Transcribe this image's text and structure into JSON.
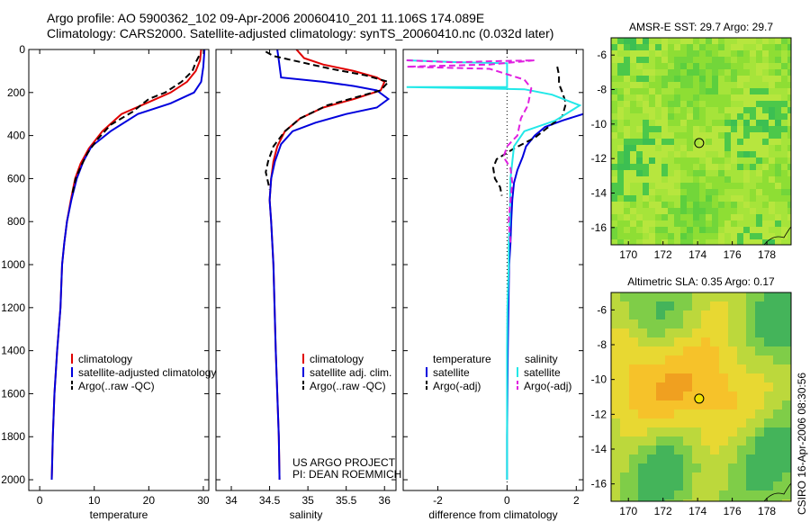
{
  "header": {
    "title_line1": "Argo profile: AO 5900362_102 09-Apr-2006 20060410_201 11.106S 174.089E",
    "title_line2": "Climatology: CARS2000. Satellite-adjusted climatology: synTS_20060410.nc (0.032d later)"
  },
  "credit": {
    "text": "CSIRO 16-Apr-2006 08:30:56"
  },
  "colors": {
    "red": "#e00000",
    "blue": "#0000dd",
    "black": "#000000",
    "cyan": "#22e8e8",
    "magenta": "#e020e0"
  },
  "chart_data": [
    {
      "type": "line",
      "id": "temperature",
      "xlabel": "temperature",
      "xlim": [
        -2,
        31
      ],
      "ylim": [
        2050,
        0
      ],
      "xticks": [
        0,
        10,
        20,
        30
      ],
      "xtick_labels": [
        "0",
        "10",
        "20",
        "30"
      ],
      "yticks": [
        0,
        200,
        400,
        600,
        800,
        1000,
        1200,
        1400,
        1600,
        1800,
        2000
      ],
      "ytick_labels": [
        "0",
        "200",
        "400",
        "600",
        "800",
        "1000",
        "1200",
        "1400",
        "1600",
        "1800",
        "2000"
      ],
      "legend": [
        "climatology",
        "satellite-adjusted climatology",
        "Argo(..raw -QC)"
      ],
      "series": [
        {
          "name": "climatology",
          "color": "red",
          "dash": "",
          "points": [
            [
              29.6,
              0
            ],
            [
              29.4,
              50
            ],
            [
              28.6,
              100
            ],
            [
              27,
              150
            ],
            [
              24,
              200
            ],
            [
              19.5,
              250
            ],
            [
              15,
              300
            ],
            [
              11.5,
              380
            ],
            [
              9,
              460
            ],
            [
              7.5,
              530
            ],
            [
              6.5,
              600
            ],
            [
              5.7,
              700
            ],
            [
              5,
              800
            ],
            [
              4.5,
              900
            ],
            [
              4.1,
              1000
            ],
            [
              3.8,
              1200
            ],
            [
              3.2,
              1400
            ],
            [
              2.7,
              1600
            ],
            [
              2.4,
              1800
            ],
            [
              2.2,
              2000
            ]
          ]
        },
        {
          "name": "satellite-adjusted climatology",
          "color": "blue",
          "dash": "",
          "points": [
            [
              30.2,
              0
            ],
            [
              30,
              80
            ],
            [
              29.6,
              150
            ],
            [
              28.3,
              200
            ],
            [
              24,
              250
            ],
            [
              18,
              300
            ],
            [
              13,
              380
            ],
            [
              9.5,
              450
            ],
            [
              8,
              520
            ],
            [
              6.8,
              600
            ],
            [
              5.8,
              700
            ],
            [
              5,
              800
            ],
            [
              4.5,
              900
            ],
            [
              4.1,
              1000
            ],
            [
              3.8,
              1200
            ],
            [
              3.2,
              1400
            ],
            [
              2.7,
              1600
            ],
            [
              2.4,
              1800
            ],
            [
              2.2,
              2000
            ]
          ]
        },
        {
          "name": "Argo(..raw -QC)",
          "color": "black",
          "dash": "7,4",
          "points": [
            [
              29.2,
              30
            ],
            [
              28.6,
              60
            ],
            [
              28,
              100
            ],
            [
              26,
              150
            ],
            [
              23,
              200
            ],
            [
              20,
              230
            ],
            [
              17,
              290
            ],
            [
              13,
              350
            ],
            [
              10.5,
              420
            ],
            [
              8.8,
              480
            ],
            [
              7.6,
              540
            ],
            [
              6.6,
              600
            ],
            [
              5.9,
              680
            ]
          ]
        }
      ]
    },
    {
      "type": "line",
      "id": "salinity",
      "xlabel": "salinity",
      "xlim": [
        33.8,
        36.15
      ],
      "ylim": [
        2050,
        0
      ],
      "xticks": [
        34,
        34.5,
        35,
        35.5,
        36
      ],
      "xtick_labels": [
        "34",
        "34.5",
        "35",
        "35.5",
        "36"
      ],
      "legend": [
        "climatology",
        "satellite adj. clim.",
        "Argo(..raw -QC)"
      ],
      "annotation": [
        "US ARGO PROJECT",
        "PI: DEAN ROEMMICH"
      ],
      "series": [
        {
          "name": "climatology",
          "color": "red",
          "dash": "",
          "points": [
            [
              34.85,
              0
            ],
            [
              34.95,
              40
            ],
            [
              35.2,
              70
            ],
            [
              35.6,
              100
            ],
            [
              35.9,
              130
            ],
            [
              36,
              150
            ],
            [
              35.95,
              190
            ],
            [
              35.6,
              230
            ],
            [
              35.2,
              270
            ],
            [
              34.9,
              320
            ],
            [
              34.7,
              380
            ],
            [
              34.6,
              450
            ],
            [
              34.55,
              520
            ],
            [
              34.52,
              600
            ],
            [
              34.5,
              700
            ],
            [
              34.52,
              800
            ],
            [
              34.55,
              1000
            ],
            [
              34.58,
              1400
            ],
            [
              34.62,
              1800
            ],
            [
              34.63,
              2000
            ]
          ]
        },
        {
          "name": "satellite adj. clim.",
          "color": "blue",
          "dash": "",
          "points": [
            [
              34.6,
              0
            ],
            [
              34.62,
              50
            ],
            [
              34.65,
              130
            ],
            [
              35.2,
              150
            ],
            [
              35.6,
              170
            ],
            [
              35.9,
              190
            ],
            [
              36.05,
              230
            ],
            [
              35.9,
              270
            ],
            [
              35.5,
              300
            ],
            [
              35.1,
              340
            ],
            [
              34.8,
              380
            ],
            [
              34.65,
              440
            ],
            [
              34.57,
              520
            ],
            [
              34.52,
              600
            ],
            [
              34.5,
              700
            ],
            [
              34.52,
              800
            ],
            [
              34.55,
              1000
            ],
            [
              34.58,
              1400
            ],
            [
              34.62,
              1800
            ],
            [
              34.63,
              2000
            ]
          ]
        },
        {
          "name": "Argo(..raw -QC)",
          "color": "black",
          "dash": "7,4",
          "points": [
            [
              34.45,
              10
            ],
            [
              34.55,
              30
            ],
            [
              34.8,
              50
            ],
            [
              35.3,
              90
            ],
            [
              35.75,
              120
            ],
            [
              36.05,
              150
            ],
            [
              35.95,
              190
            ],
            [
              35.65,
              220
            ],
            [
              35.25,
              260
            ],
            [
              34.9,
              320
            ],
            [
              34.7,
              380
            ],
            [
              34.55,
              450
            ],
            [
              34.48,
              520
            ],
            [
              34.45,
              570
            ],
            [
              34.5,
              650
            ]
          ]
        }
      ]
    },
    {
      "type": "line",
      "id": "difference",
      "xlabel": "difference from climatology",
      "xlim": [
        -3,
        2.2
      ],
      "ylim": [
        2050,
        0
      ],
      "xticks": [
        -2,
        0,
        2
      ],
      "xtick_labels": [
        "-2",
        "0",
        "2"
      ],
      "legend_header": [
        "temperature",
        "salinity"
      ],
      "legend": [
        "satellite",
        "Argo(-adj)",
        "satellite",
        "Argo(-adj)"
      ],
      "series": [
        {
          "name": "temperature satellite",
          "color": "blue",
          "dash": "",
          "points": [
            [
              2.2,
              300
            ],
            [
              1.6,
              330
            ],
            [
              1.1,
              360
            ],
            [
              0.8,
              400
            ],
            [
              0.55,
              450
            ],
            [
              0.45,
              500
            ],
            [
              0.3,
              560
            ],
            [
              0.2,
              620
            ],
            [
              0.15,
              700
            ],
            [
              0.12,
              800
            ],
            [
              0.1,
              900
            ],
            [
              0.06,
              1000
            ],
            [
              0.04,
              1200
            ],
            [
              0.02,
              1400
            ],
            [
              0.01,
              1600
            ],
            [
              0,
              1800
            ],
            [
              0,
              2000
            ]
          ]
        },
        {
          "name": "temperature Argo(-adj)",
          "color": "black",
          "dash": "7,4",
          "points": [
            [
              1.45,
              80
            ],
            [
              1.5,
              120
            ],
            [
              1.5,
              160
            ],
            [
              1.6,
              200
            ],
            [
              1.7,
              250
            ],
            [
              1.6,
              310
            ],
            [
              1.2,
              360
            ],
            [
              0.8,
              410
            ],
            [
              0.2,
              460
            ],
            [
              -0.3,
              510
            ],
            [
              -0.4,
              550
            ],
            [
              -0.35,
              600
            ],
            [
              -0.2,
              640
            ],
            [
              -0.15,
              680
            ]
          ]
        },
        {
          "name": "salinity satellite",
          "color": "cyan",
          "dash": "",
          "points": [
            [
              -2.9,
              50
            ],
            [
              -1.3,
              60
            ],
            [
              0,
              64
            ],
            [
              0,
              175
            ],
            [
              -2.9,
              175
            ],
            [
              -1,
              180
            ],
            [
              0.5,
              185
            ],
            [
              1.3,
              210
            ],
            [
              2.1,
              260
            ],
            [
              1.4,
              330
            ],
            [
              0.5,
              380
            ],
            [
              0.2,
              450
            ],
            [
              0.1,
              600
            ],
            [
              0.08,
              800
            ],
            [
              0.05,
              900
            ],
            [
              0.05,
              1000
            ],
            [
              0.01,
              1200
            ],
            [
              0,
              1400
            ],
            [
              0,
              2000
            ]
          ]
        },
        {
          "name": "salinity Argo(-adj)",
          "color": "magenta",
          "dash": "7,4",
          "points": [
            [
              -2.9,
              50
            ],
            [
              -1.5,
              60
            ],
            [
              -0.5,
              55
            ],
            [
              0.8,
              50
            ],
            [
              -0.5,
              70
            ],
            [
              -2.9,
              80
            ],
            [
              -0.5,
              90
            ],
            [
              0.5,
              140
            ],
            [
              0.7,
              180
            ],
            [
              0.6,
              260
            ],
            [
              0.4,
              320
            ],
            [
              0.3,
              400
            ],
            [
              0,
              450
            ],
            [
              -0.1,
              500
            ],
            [
              0.1,
              550
            ],
            [
              0.15,
              620
            ],
            [
              0.1,
              700
            ],
            [
              0.05,
              800
            ],
            [
              0.1,
              900
            ]
          ]
        }
      ]
    },
    {
      "type": "heatmap",
      "id": "sst_map",
      "title": "AMSR-E SST: 29.7 Argo: 29.7",
      "xlim": [
        169,
        179.4
      ],
      "ylim": [
        -17,
        -5
      ],
      "xticks": [
        170,
        172,
        174,
        176,
        178
      ],
      "yticks": [
        -6,
        -8,
        -10,
        -12,
        -14,
        -16
      ],
      "marker": [
        174.09,
        -11.1
      ],
      "palette": [
        "#5ccf3e",
        "#72d63a",
        "#8ede34",
        "#a6e43a",
        "#b7e63e",
        "#4cc84a",
        "#3cbf52"
      ]
    },
    {
      "type": "heatmap",
      "id": "sla_map",
      "title": "Altimetric SLA: 0.35 Argo: 0.17",
      "xlim": [
        169,
        179.4
      ],
      "ylim": [
        -17,
        -5
      ],
      "xticks": [
        170,
        172,
        174,
        176,
        178
      ],
      "yticks": [
        -6,
        -8,
        -10,
        -12,
        -14,
        -16
      ],
      "marker": [
        174.09,
        -11.1
      ],
      "palette": [
        "#f0a020",
        "#f6c22a",
        "#e8d832",
        "#bcd83c",
        "#7fcd48",
        "#44b45a"
      ]
    }
  ]
}
